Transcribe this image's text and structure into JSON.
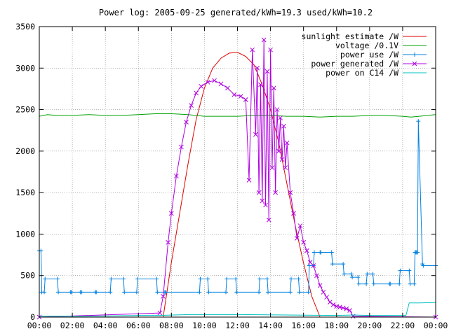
{
  "chart_data": {
    "type": "line",
    "title": "Power log: 2005-09-25 generated/kWh=19.3 used/kWh=10.2",
    "xlabel": "",
    "ylabel": "",
    "xlim": [
      0,
      24
    ],
    "ylim": [
      0,
      3500
    ],
    "x_ticks": [
      {
        "value": 0,
        "label": "00:00"
      },
      {
        "value": 2,
        "label": "02:00"
      },
      {
        "value": 4,
        "label": "04:00"
      },
      {
        "value": 6,
        "label": "06:00"
      },
      {
        "value": 8,
        "label": "08:00"
      },
      {
        "value": 10,
        "label": "10:00"
      },
      {
        "value": 12,
        "label": "12:00"
      },
      {
        "value": 14,
        "label": "14:00"
      },
      {
        "value": 16,
        "label": "16:00"
      },
      {
        "value": 18,
        "label": "18:00"
      },
      {
        "value": 20,
        "label": "20:00"
      },
      {
        "value": 22,
        "label": "22:00"
      },
      {
        "value": 24,
        "label": "00:00"
      }
    ],
    "y_ticks": [
      {
        "value": 0,
        "label": "0"
      },
      {
        "value": 500,
        "label": "500"
      },
      {
        "value": 1000,
        "label": "1000"
      },
      {
        "value": 1500,
        "label": "1500"
      },
      {
        "value": 2000,
        "label": "2000"
      },
      {
        "value": 2500,
        "label": "2500"
      },
      {
        "value": 3000,
        "label": "3000"
      },
      {
        "value": 3500,
        "label": "3500"
      }
    ],
    "grid": true,
    "legend_position": "top-right",
    "series": [
      {
        "name": "sunlight estimate /W",
        "color": "#e00000",
        "marker": "none",
        "x": [
          7.5,
          8.0,
          8.5,
          9.0,
          9.5,
          10.0,
          10.5,
          11.0,
          11.5,
          12.0,
          12.5,
          13.0,
          13.5,
          14.0,
          14.5,
          15.0,
          15.5,
          16.0,
          16.5,
          17.0
        ],
        "y": [
          0,
          660,
          1250,
          1840,
          2380,
          2760,
          3000,
          3120,
          3180,
          3190,
          3140,
          3040,
          2800,
          2500,
          2100,
          1600,
          1100,
          650,
          250,
          0
        ]
      },
      {
        "name": "voltage /0.1V",
        "color": "#00a000",
        "marker": "none",
        "x": [
          0,
          0.5,
          1,
          2,
          3,
          4,
          5,
          6,
          7,
          8,
          9,
          10,
          11,
          12,
          13,
          14,
          15,
          16,
          17,
          18,
          19,
          20,
          21,
          22,
          22.5,
          23,
          23.5,
          24
        ],
        "y": [
          2420,
          2440,
          2430,
          2430,
          2440,
          2430,
          2430,
          2440,
          2450,
          2450,
          2440,
          2420,
          2420,
          2420,
          2430,
          2430,
          2420,
          2420,
          2410,
          2420,
          2420,
          2430,
          2430,
          2420,
          2410,
          2420,
          2430,
          2440
        ]
      },
      {
        "name": "power use /W",
        "color": "#0080e0",
        "marker": "plus",
        "x": [
          0,
          0.1,
          0.15,
          0.3,
          0.35,
          1.1,
          1.15,
          1.9,
          1.95,
          2.5,
          2.55,
          3.4,
          3.45,
          4.3,
          4.35,
          5.1,
          5.15,
          5.9,
          5.95,
          7.1,
          7.15,
          7.6,
          7.65,
          9.7,
          9.75,
          10.2,
          10.25,
          11.3,
          11.35,
          11.9,
          11.95,
          13.3,
          13.35,
          13.8,
          13.85,
          15.2,
          15.25,
          15.7,
          15.75,
          16.3,
          16.35,
          16.6,
          16.65,
          17.0,
          17.05,
          17.7,
          17.75,
          18.4,
          18.45,
          18.9,
          18.95,
          19.3,
          19.35,
          19.8,
          19.85,
          20.2,
          20.25,
          21.2,
          21.25,
          21.8,
          21.85,
          22.4,
          22.45,
          22.7,
          22.75,
          22.8,
          22.85,
          22.9,
          22.95,
          23.2,
          23.25,
          24
        ],
        "y": [
          800,
          800,
          300,
          300,
          460,
          460,
          300,
          300,
          300,
          300,
          300,
          300,
          300,
          300,
          460,
          460,
          300,
          300,
          460,
          460,
          300,
          300,
          300,
          300,
          460,
          460,
          300,
          300,
          460,
          460,
          300,
          300,
          460,
          460,
          300,
          300,
          460,
          460,
          300,
          300,
          620,
          620,
          780,
          780,
          780,
          780,
          640,
          640,
          520,
          520,
          480,
          480,
          400,
          400,
          520,
          520,
          400,
          400,
          400,
          400,
          560,
          560,
          400,
          400,
          780,
          780,
          780,
          780,
          2360,
          640,
          620,
          620
        ]
      },
      {
        "name": "power generated /W",
        "color": "#b000e0",
        "marker": "cross",
        "x": [
          0,
          7.3,
          7.5,
          7.8,
          8.0,
          8.3,
          8.6,
          8.9,
          9.2,
          9.5,
          9.8,
          10.2,
          10.6,
          11.0,
          11.4,
          11.8,
          12.2,
          12.5,
          12.7,
          12.9,
          13.1,
          13.2,
          13.3,
          13.4,
          13.5,
          13.6,
          13.7,
          13.8,
          13.9,
          14.0,
          14.1,
          14.2,
          14.3,
          14.4,
          14.5,
          14.6,
          14.7,
          14.8,
          14.9,
          15.0,
          15.2,
          15.4,
          15.6,
          15.8,
          16.0,
          16.2,
          16.4,
          16.6,
          16.8,
          17.0,
          17.2,
          17.4,
          17.6,
          17.8,
          18.0,
          18.2,
          18.4,
          18.6,
          18.8,
          19.0,
          24
        ],
        "y": [
          0,
          50,
          250,
          900,
          1250,
          1700,
          2050,
          2350,
          2550,
          2700,
          2780,
          2830,
          2850,
          2810,
          2760,
          2680,
          2660,
          2620,
          1650,
          3220,
          2200,
          3000,
          1500,
          2800,
          1400,
          3340,
          1350,
          2960,
          1170,
          3220,
          1800,
          2760,
          1500,
          2500,
          2000,
          2400,
          1900,
          2300,
          1800,
          2100,
          1500,
          1250,
          950,
          1100,
          900,
          800,
          660,
          620,
          500,
          380,
          300,
          240,
          180,
          150,
          130,
          120,
          110,
          100,
          80,
          10,
          0
        ]
      },
      {
        "name": "power on C14 /W",
        "color": "#00c0c0",
        "marker": "none",
        "x": [
          0,
          3,
          6,
          7.3,
          9,
          12,
          15,
          18,
          19,
          20,
          22.2,
          22.4,
          23,
          24
        ],
        "y": [
          10,
          10,
          20,
          20,
          30,
          30,
          25,
          20,
          25,
          20,
          20,
          170,
          170,
          175
        ]
      }
    ]
  }
}
